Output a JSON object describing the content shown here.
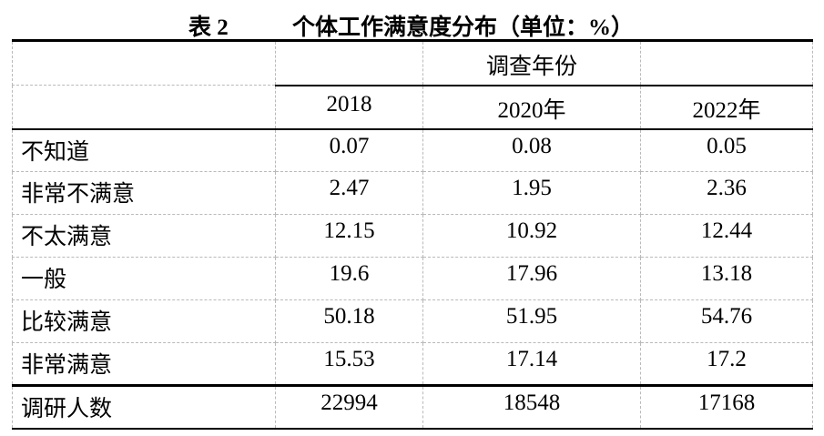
{
  "caption": {
    "number": "表 2",
    "title": "个体工作满意度分布（单位：%）"
  },
  "table": {
    "group_header": "调查年份",
    "year_headers": [
      "2018",
      "2020年",
      "2022年"
    ],
    "rows": [
      {
        "label": "不知道",
        "values": [
          "0.07",
          "0.08",
          "0.05"
        ]
      },
      {
        "label": "非常不满意",
        "values": [
          "2.47",
          "1.95",
          "2.36"
        ]
      },
      {
        "label": "不太满意",
        "values": [
          "12.15",
          "10.92",
          "12.44"
        ]
      },
      {
        "label": "一般",
        "values": [
          "19.6",
          "17.96",
          "13.18"
        ]
      },
      {
        "label": "比较满意",
        "values": [
          "50.18",
          "51.95",
          "54.76"
        ]
      },
      {
        "label": "非常满意",
        "values": [
          "15.53",
          "17.14",
          "17.2"
        ]
      }
    ],
    "footer": {
      "label": "调研人数",
      "values": [
        "22994",
        "18548",
        "17168"
      ]
    }
  },
  "colors": {
    "text": "#000000",
    "solid_border": "#000000",
    "gridline": "#b9b9b9",
    "background": "#ffffff"
  }
}
